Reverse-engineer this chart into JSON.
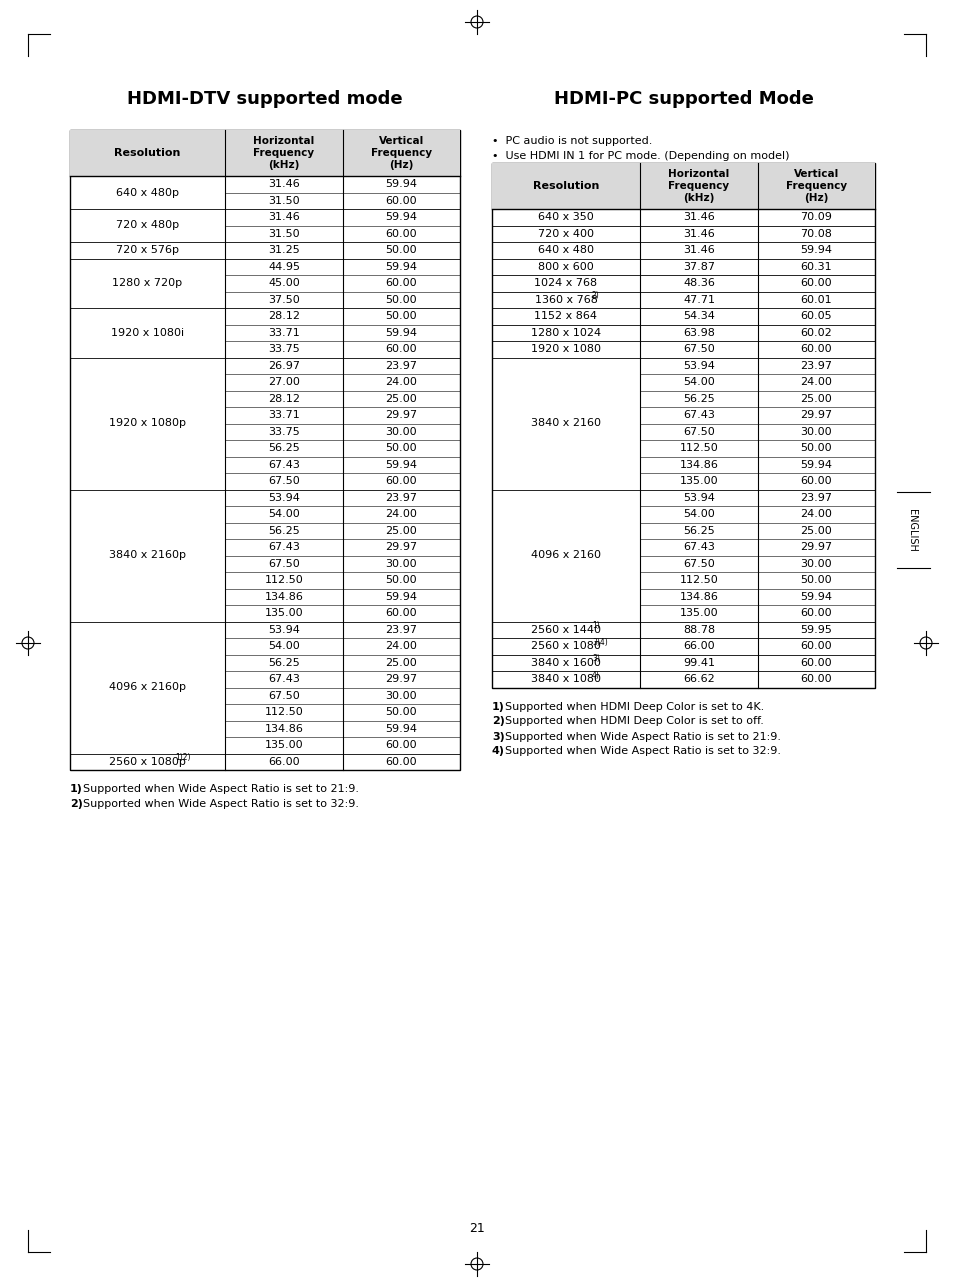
{
  "page_bg": "#ffffff",
  "title_dtv": "HDMI-DTV supported mode",
  "title_pc": "HDMI-PC supported Mode",
  "pc_notes": [
    "•  PC audio is not supported.",
    "•  Use HDMI IN 1 for PC mode. (Depending on model)"
  ],
  "dtv_rows": [
    {
      "res": "640 x 480p",
      "sup": "",
      "freqs": [
        [
          "31.46",
          "59.94"
        ],
        [
          "31.50",
          "60.00"
        ]
      ]
    },
    {
      "res": "720 x 480p",
      "sup": "",
      "freqs": [
        [
          "31.46",
          "59.94"
        ],
        [
          "31.50",
          "60.00"
        ]
      ]
    },
    {
      "res": "720 x 576p",
      "sup": "",
      "freqs": [
        [
          "31.25",
          "50.00"
        ]
      ]
    },
    {
      "res": "1280 x 720p",
      "sup": "",
      "freqs": [
        [
          "44.95",
          "59.94"
        ],
        [
          "45.00",
          "60.00"
        ],
        [
          "37.50",
          "50.00"
        ]
      ]
    },
    {
      "res": "1920 x 1080i",
      "sup": "",
      "freqs": [
        [
          "28.12",
          "50.00"
        ],
        [
          "33.71",
          "59.94"
        ],
        [
          "33.75",
          "60.00"
        ]
      ]
    },
    {
      "res": "1920 x 1080p",
      "sup": "",
      "freqs": [
        [
          "26.97",
          "23.97"
        ],
        [
          "27.00",
          "24.00"
        ],
        [
          "28.12",
          "25.00"
        ],
        [
          "33.71",
          "29.97"
        ],
        [
          "33.75",
          "30.00"
        ],
        [
          "56.25",
          "50.00"
        ],
        [
          "67.43",
          "59.94"
        ],
        [
          "67.50",
          "60.00"
        ]
      ]
    },
    {
      "res": "3840 x 2160p",
      "sup": "",
      "freqs": [
        [
          "53.94",
          "23.97"
        ],
        [
          "54.00",
          "24.00"
        ],
        [
          "56.25",
          "25.00"
        ],
        [
          "67.43",
          "29.97"
        ],
        [
          "67.50",
          "30.00"
        ],
        [
          "112.50",
          "50.00"
        ],
        [
          "134.86",
          "59.94"
        ],
        [
          "135.00",
          "60.00"
        ]
      ]
    },
    {
      "res": "4096 x 2160p",
      "sup": "",
      "freqs": [
        [
          "53.94",
          "23.97"
        ],
        [
          "54.00",
          "24.00"
        ],
        [
          "56.25",
          "25.00"
        ],
        [
          "67.43",
          "29.97"
        ],
        [
          "67.50",
          "30.00"
        ],
        [
          "112.50",
          "50.00"
        ],
        [
          "134.86",
          "59.94"
        ],
        [
          "135.00",
          "60.00"
        ]
      ]
    },
    {
      "res": "2560 x 1080p",
      "sup": "1)2)",
      "freqs": [
        [
          "66.00",
          "60.00"
        ]
      ]
    }
  ],
  "pc_rows": [
    {
      "res": "640 x 350",
      "sup": "",
      "freqs": [
        [
          "31.46",
          "70.09"
        ]
      ]
    },
    {
      "res": "720 x 400",
      "sup": "",
      "freqs": [
        [
          "31.46",
          "70.08"
        ]
      ]
    },
    {
      "res": "640 x 480",
      "sup": "",
      "freqs": [
        [
          "31.46",
          "59.94"
        ]
      ]
    },
    {
      "res": "800 x 600",
      "sup": "",
      "freqs": [
        [
          "37.87",
          "60.31"
        ]
      ]
    },
    {
      "res": "1024 x 768",
      "sup": "",
      "freqs": [
        [
          "48.36",
          "60.00"
        ]
      ]
    },
    {
      "res": "1360 x 768",
      "sup": "2)",
      "freqs": [
        [
          "47.71",
          "60.01"
        ]
      ]
    },
    {
      "res": "1152 x 864",
      "sup": "",
      "freqs": [
        [
          "54.34",
          "60.05"
        ]
      ]
    },
    {
      "res": "1280 x 1024",
      "sup": "",
      "freqs": [
        [
          "63.98",
          "60.02"
        ]
      ]
    },
    {
      "res": "1920 x 1080",
      "sup": "",
      "freqs": [
        [
          "67.50",
          "60.00"
        ]
      ]
    },
    {
      "res": "3840 x 2160",
      "sup": "",
      "freqs": [
        [
          "53.94",
          "23.97"
        ],
        [
          "54.00",
          "24.00"
        ],
        [
          "56.25",
          "25.00"
        ],
        [
          "67.43",
          "29.97"
        ],
        [
          "67.50",
          "30.00"
        ],
        [
          "112.50",
          "50.00"
        ],
        [
          "134.86",
          "59.94"
        ],
        [
          "135.00",
          "60.00"
        ]
      ]
    },
    {
      "res": "4096 x 2160",
      "sup": "",
      "freqs": [
        [
          "53.94",
          "23.97"
        ],
        [
          "54.00",
          "24.00"
        ],
        [
          "56.25",
          "25.00"
        ],
        [
          "67.43",
          "29.97"
        ],
        [
          "67.50",
          "30.00"
        ],
        [
          "112.50",
          "50.00"
        ],
        [
          "134.86",
          "59.94"
        ],
        [
          "135.00",
          "60.00"
        ]
      ]
    },
    {
      "res": "2560 x 1440",
      "sup": "1)",
      "freqs": [
        [
          "88.78",
          "59.95"
        ]
      ]
    },
    {
      "res": "2560 x 1080",
      "sup": "3)4)",
      "freqs": [
        [
          "66.00",
          "60.00"
        ]
      ]
    },
    {
      "res": "3840 x 1600",
      "sup": "3)",
      "freqs": [
        [
          "99.41",
          "60.00"
        ]
      ]
    },
    {
      "res": "3840 x 1080",
      "sup": "4)",
      "freqs": [
        [
          "66.62",
          "60.00"
        ]
      ]
    }
  ],
  "dtv_footnotes": [
    [
      "1)",
      "Supported when Wide Aspect Ratio is set to 21:9."
    ],
    [
      "2)",
      "Supported when Wide Aspect Ratio is set to 32:9."
    ]
  ],
  "pc_footnotes": [
    [
      "1)",
      "Supported when HDMI Deep Color is set to 4K."
    ],
    [
      "2)",
      "Supported when HDMI Deep Color is set to off."
    ],
    [
      "3)",
      "Supported when Wide Aspect Ratio is set to 21:9."
    ],
    [
      "4)",
      "Supported when Wide Aspect Ratio is set to 32:9."
    ]
  ],
  "page_number": "21",
  "english_label": "ENGLISH",
  "header_bg": "#d9d9d9",
  "grid_color": "#000000",
  "fig_width": 9.54,
  "fig_height": 12.86,
  "dpi": 100
}
